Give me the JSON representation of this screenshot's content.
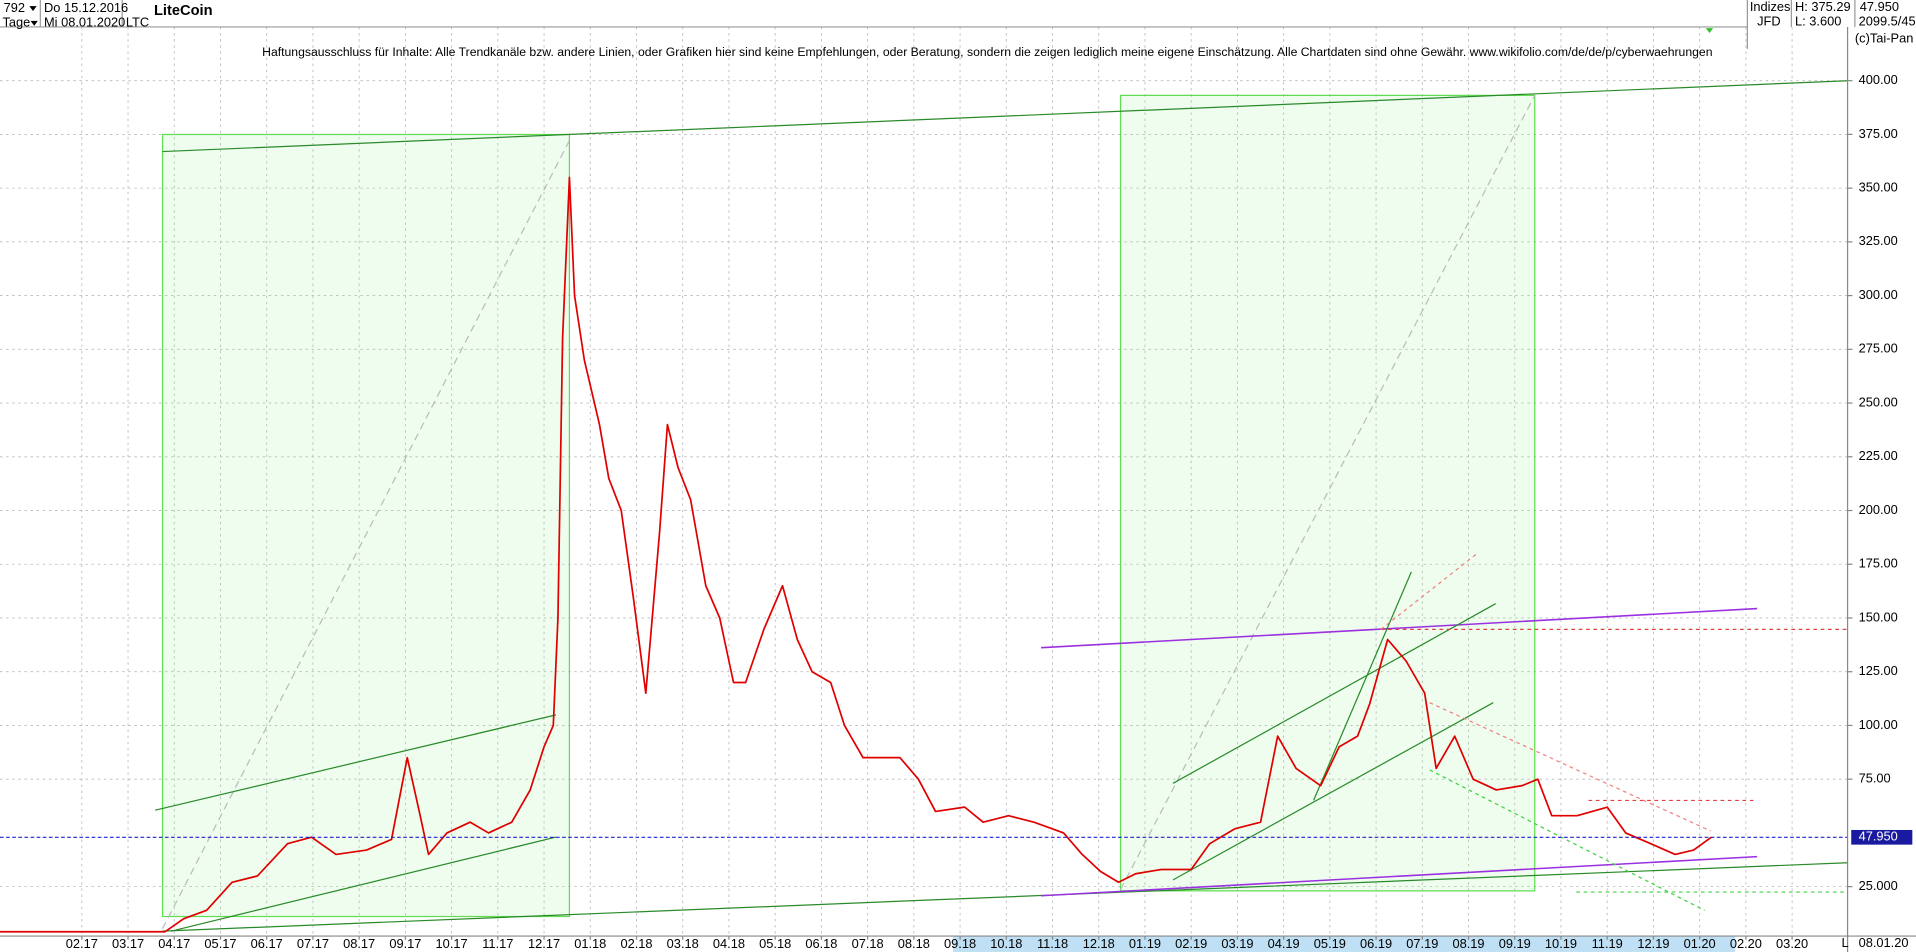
{
  "header": {
    "bars": "792",
    "start": "Do 15.12.2016",
    "period": "Tage",
    "end": "Mi 08.01.2020",
    "symbol": "LTC",
    "group": "Indizes",
    "source": "JFD",
    "high": "H: 375.29",
    "low": "L: 3.600",
    "last": "47.950",
    "info": "2099.5/45",
    "copyright": "(c)Tai-Pan",
    "end_date": "08.01.20",
    "scale_mode": "L"
  },
  "chart_data": {
    "type": "line",
    "title": "LiteCoin",
    "subtitle": "Haftungsausschluss für Inhalte: Alle Trendkanäle bzw. andere Linien, oder Grafiken hier sind keine Empfehlungen, oder Beratung, sondern die zeigen lediglich meine eigene Einschätzung. Alle Chartdaten sind ohne Gewähr.  www.wikifolio.com/de/de/p/cyberwaehrungen",
    "x": [
      -0.77,
      2.8,
      3.2,
      3.7,
      4.25,
      4.8,
      5.45,
      5.97,
      6.5,
      7.16,
      7.7,
      8.04,
      8.3,
      8.5,
      8.9,
      9.4,
      9.8,
      10.3,
      10.7,
      11.0,
      11.2,
      11.3,
      11.4,
      11.55,
      11.66,
      11.87,
      12.2,
      12.4,
      12.67,
      12.93,
      13.2,
      13.5,
      13.67,
      13.9,
      14.17,
      14.5,
      14.8,
      15.1,
      15.36,
      15.76,
      16.16,
      16.48,
      16.8,
      17.2,
      17.5,
      17.9,
      18.3,
      18.7,
      19.1,
      19.47,
      20.1,
      20.5,
      21.05,
      21.6,
      22.24,
      22.64,
      23.04,
      23.43,
      23.8,
      24.36,
      25.0,
      25.4,
      25.95,
      26.5,
      26.87,
      27.27,
      27.8,
      28.2,
      28.6,
      28.86,
      29.25,
      29.65,
      30.05,
      30.3,
      30.7,
      31.1,
      31.6,
      32.16,
      32.5,
      32.8,
      33.35,
      34.0,
      34.4,
      34.94,
      35.47,
      35.87,
      36.25
    ],
    "series": [
      {
        "name": "LTC",
        "color": "#e00000",
        "values": [
          4,
          4,
          10,
          14,
          27,
          30,
          45,
          48,
          40,
          42,
          47,
          85,
          60,
          40,
          50,
          55,
          50,
          55,
          70,
          90,
          100,
          150,
          280,
          355,
          300,
          270,
          240,
          215,
          200,
          160,
          115,
          190,
          240,
          220,
          205,
          165,
          150,
          120,
          120,
          145,
          165,
          140,
          125,
          120,
          100,
          85,
          85,
          85,
          75,
          60,
          62,
          55,
          58,
          55,
          50,
          40,
          32,
          27,
          31,
          33,
          33,
          45,
          52,
          55,
          95,
          80,
          72,
          90,
          95,
          110,
          140,
          130,
          115,
          80,
          95,
          75,
          70,
          72,
          75,
          58,
          58,
          62,
          50,
          45,
          40,
          42,
          47.95
        ]
      }
    ],
    "last_price": {
      "value": 47.95,
      "label": "47.950"
    },
    "xlim": [
      -0.77,
      39.2
    ],
    "ylim": [
      2,
      425
    ],
    "xticks": [
      {
        "value": 1,
        "label": "02.17"
      },
      {
        "value": 2,
        "label": "03.17"
      },
      {
        "value": 3,
        "label": "04.17"
      },
      {
        "value": 4,
        "label": "05.17"
      },
      {
        "value": 5,
        "label": "06.17"
      },
      {
        "value": 6,
        "label": "07.17"
      },
      {
        "value": 7,
        "label": "08.17"
      },
      {
        "value": 8,
        "label": "09.17"
      },
      {
        "value": 9,
        "label": "10.17"
      },
      {
        "value": 10,
        "label": "11.17"
      },
      {
        "value": 11,
        "label": "12.17"
      },
      {
        "value": 12,
        "label": "01.18"
      },
      {
        "value": 13,
        "label": "02.18"
      },
      {
        "value": 14,
        "label": "03.18"
      },
      {
        "value": 15,
        "label": "04.18"
      },
      {
        "value": 16,
        "label": "05.18"
      },
      {
        "value": 17,
        "label": "06.18"
      },
      {
        "value": 18,
        "label": "07.18"
      },
      {
        "value": 19,
        "label": "08.18"
      },
      {
        "value": 20,
        "label": "09.18"
      },
      {
        "value": 21,
        "label": "10.18"
      },
      {
        "value": 22,
        "label": "11.18"
      },
      {
        "value": 23,
        "label": "12.18"
      },
      {
        "value": 24,
        "label": "01.19"
      },
      {
        "value": 25,
        "label": "02.19"
      },
      {
        "value": 26,
        "label": "03.19"
      },
      {
        "value": 27,
        "label": "04.19"
      },
      {
        "value": 28,
        "label": "05.19"
      },
      {
        "value": 29,
        "label": "06.19"
      },
      {
        "value": 30,
        "label": "07.19"
      },
      {
        "value": 31,
        "label": "08.19"
      },
      {
        "value": 32,
        "label": "09.19"
      },
      {
        "value": 33,
        "label": "10.19"
      },
      {
        "value": 34,
        "label": "11.19"
      },
      {
        "value": 35,
        "label": "12.19"
      },
      {
        "value": 36,
        "label": "01.20"
      },
      {
        "value": 37,
        "label": "02.20"
      },
      {
        "value": 38,
        "label": "03.20"
      }
    ],
    "yticks": [
      {
        "value": 25,
        "label": "25.000"
      },
      {
        "value": 75,
        "label": "75.00"
      },
      {
        "value": 100,
        "label": "100.00"
      },
      {
        "value": 125,
        "label": "125.00"
      },
      {
        "value": 150,
        "label": "150.00"
      },
      {
        "value": 175,
        "label": "175.00"
      },
      {
        "value": 200,
        "label": "200.00"
      },
      {
        "value": 225,
        "label": "225.00"
      },
      {
        "value": 250,
        "label": "250.00"
      },
      {
        "value": 275,
        "label": "275.00"
      },
      {
        "value": 300,
        "label": "300.00"
      },
      {
        "value": 325,
        "label": "325.00"
      },
      {
        "value": 350,
        "label": "350.00"
      },
      {
        "value": 375,
        "label": "375.00"
      },
      {
        "value": 400,
        "label": "400.00"
      }
    ],
    "grid": true
  }
}
